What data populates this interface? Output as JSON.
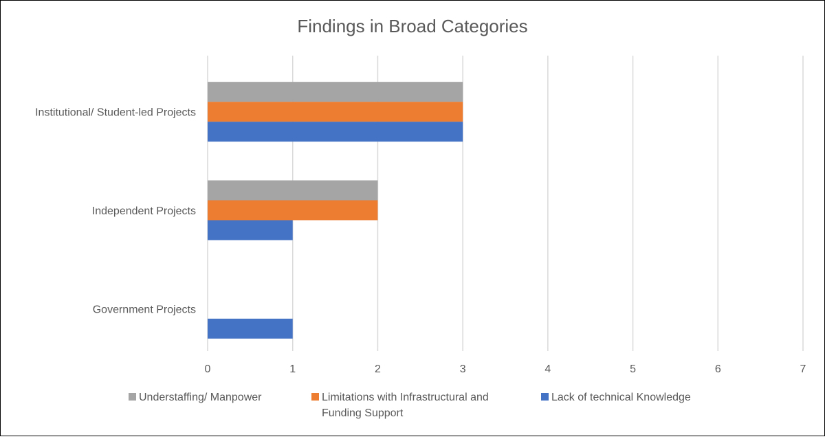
{
  "chart_data": {
    "type": "bar",
    "orientation": "horizontal",
    "title": "Findings in Broad Categories",
    "xlabel": "",
    "ylabel": "",
    "categories": [
      "Institutional/ Student-led Projects",
      "Independent Projects",
      "Government Projects"
    ],
    "series": [
      {
        "name": "Understaffing/ Manpower",
        "color": "#A5A5A5",
        "values": [
          3,
          2,
          0
        ]
      },
      {
        "name": "Limitations with Infrastructural and Funding Support",
        "color": "#ED7D31",
        "values": [
          3,
          2,
          0
        ]
      },
      {
        "name": "Lack of technical Knowledge",
        "color": "#4472C4",
        "values": [
          3,
          1,
          1
        ]
      }
    ],
    "xlim": [
      0,
      7
    ],
    "x_ticks": [
      "0",
      "1",
      "2",
      "3",
      "4",
      "5",
      "6",
      "7"
    ],
    "grid": "vertical",
    "legend_position": "bottom"
  },
  "legend": {
    "items": [
      {
        "label_lines": [
          "Understaffing/ Manpower"
        ]
      },
      {
        "label_lines": [
          "Limitations with Infrastructural and",
          "Funding Support"
        ]
      },
      {
        "label_lines": [
          "Lack of technical Knowledge"
        ]
      }
    ]
  },
  "colors": {
    "gridline": "#D9D9D9",
    "text": "#595959"
  }
}
